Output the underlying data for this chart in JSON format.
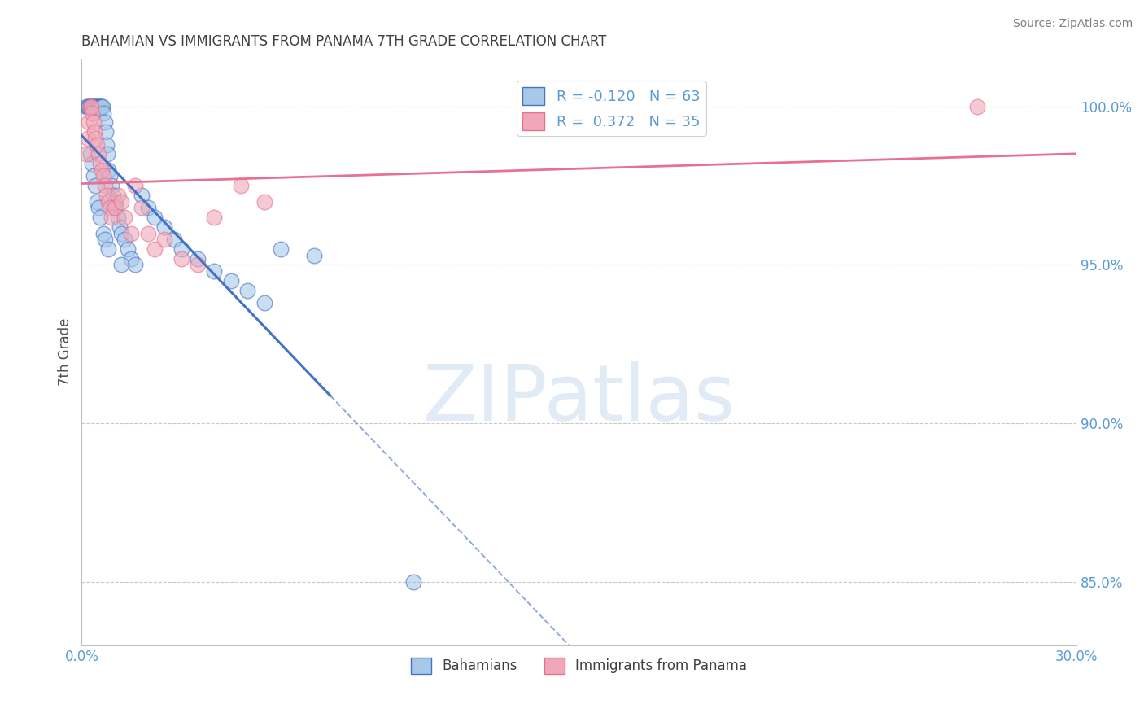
{
  "title": "BAHAMIAN VS IMMIGRANTS FROM PANAMA 7TH GRADE CORRELATION CHART",
  "source": "Source: ZipAtlas.com",
  "ylabel": "7th Grade",
  "xlim": [
    0.0,
    30.0
  ],
  "ylim": [
    83.0,
    101.5
  ],
  "color_blue": "#A8C8E8",
  "color_pink": "#F0A8B8",
  "color_blue_line": "#4472C4",
  "color_pink_line": "#E87090",
  "color_axis_text": "#5B9BD5",
  "color_title": "#404040",
  "bahamians_x": [
    0.15,
    0.18,
    0.2,
    0.22,
    0.25,
    0.28,
    0.3,
    0.32,
    0.35,
    0.38,
    0.4,
    0.42,
    0.45,
    0.48,
    0.5,
    0.52,
    0.55,
    0.58,
    0.6,
    0.62,
    0.65,
    0.7,
    0.72,
    0.75,
    0.78,
    0.8,
    0.85,
    0.9,
    0.95,
    1.0,
    1.05,
    1.1,
    1.15,
    1.2,
    1.3,
    1.4,
    1.5,
    1.6,
    1.8,
    2.0,
    2.2,
    2.5,
    2.8,
    3.0,
    3.5,
    4.0,
    4.5,
    5.0,
    5.5,
    6.0,
    7.0,
    0.25,
    0.3,
    0.35,
    0.4,
    0.45,
    0.5,
    0.55,
    0.65,
    0.7,
    0.8,
    1.2,
    10.0
  ],
  "bahamians_y": [
    100.0,
    100.0,
    100.0,
    100.0,
    100.0,
    100.0,
    100.0,
    100.0,
    100.0,
    100.0,
    100.0,
    100.0,
    100.0,
    100.0,
    100.0,
    100.0,
    100.0,
    100.0,
    100.0,
    100.0,
    99.8,
    99.5,
    99.2,
    98.8,
    98.5,
    98.0,
    97.8,
    97.5,
    97.2,
    97.0,
    96.8,
    96.5,
    96.2,
    96.0,
    95.8,
    95.5,
    95.2,
    95.0,
    97.2,
    96.8,
    96.5,
    96.2,
    95.8,
    95.5,
    95.2,
    94.8,
    94.5,
    94.2,
    93.8,
    95.5,
    95.3,
    98.5,
    98.2,
    97.8,
    97.5,
    97.0,
    96.8,
    96.5,
    96.0,
    95.8,
    95.5,
    95.0,
    85.0
  ],
  "panama_x": [
    0.15,
    0.18,
    0.2,
    0.25,
    0.28,
    0.3,
    0.35,
    0.38,
    0.42,
    0.45,
    0.5,
    0.55,
    0.6,
    0.65,
    0.7,
    0.75,
    0.8,
    0.85,
    0.9,
    1.0,
    1.1,
    1.2,
    1.3,
    1.5,
    1.6,
    1.8,
    2.0,
    2.2,
    2.5,
    3.0,
    3.5,
    4.0,
    4.8,
    5.5,
    27.0
  ],
  "panama_y": [
    98.5,
    99.0,
    99.5,
    100.0,
    100.0,
    99.8,
    99.5,
    99.2,
    99.0,
    98.8,
    98.5,
    98.2,
    98.0,
    97.8,
    97.5,
    97.2,
    97.0,
    96.8,
    96.5,
    96.8,
    97.2,
    97.0,
    96.5,
    96.0,
    97.5,
    96.8,
    96.0,
    95.5,
    95.8,
    95.2,
    95.0,
    96.5,
    97.5,
    97.0,
    100.0
  ]
}
